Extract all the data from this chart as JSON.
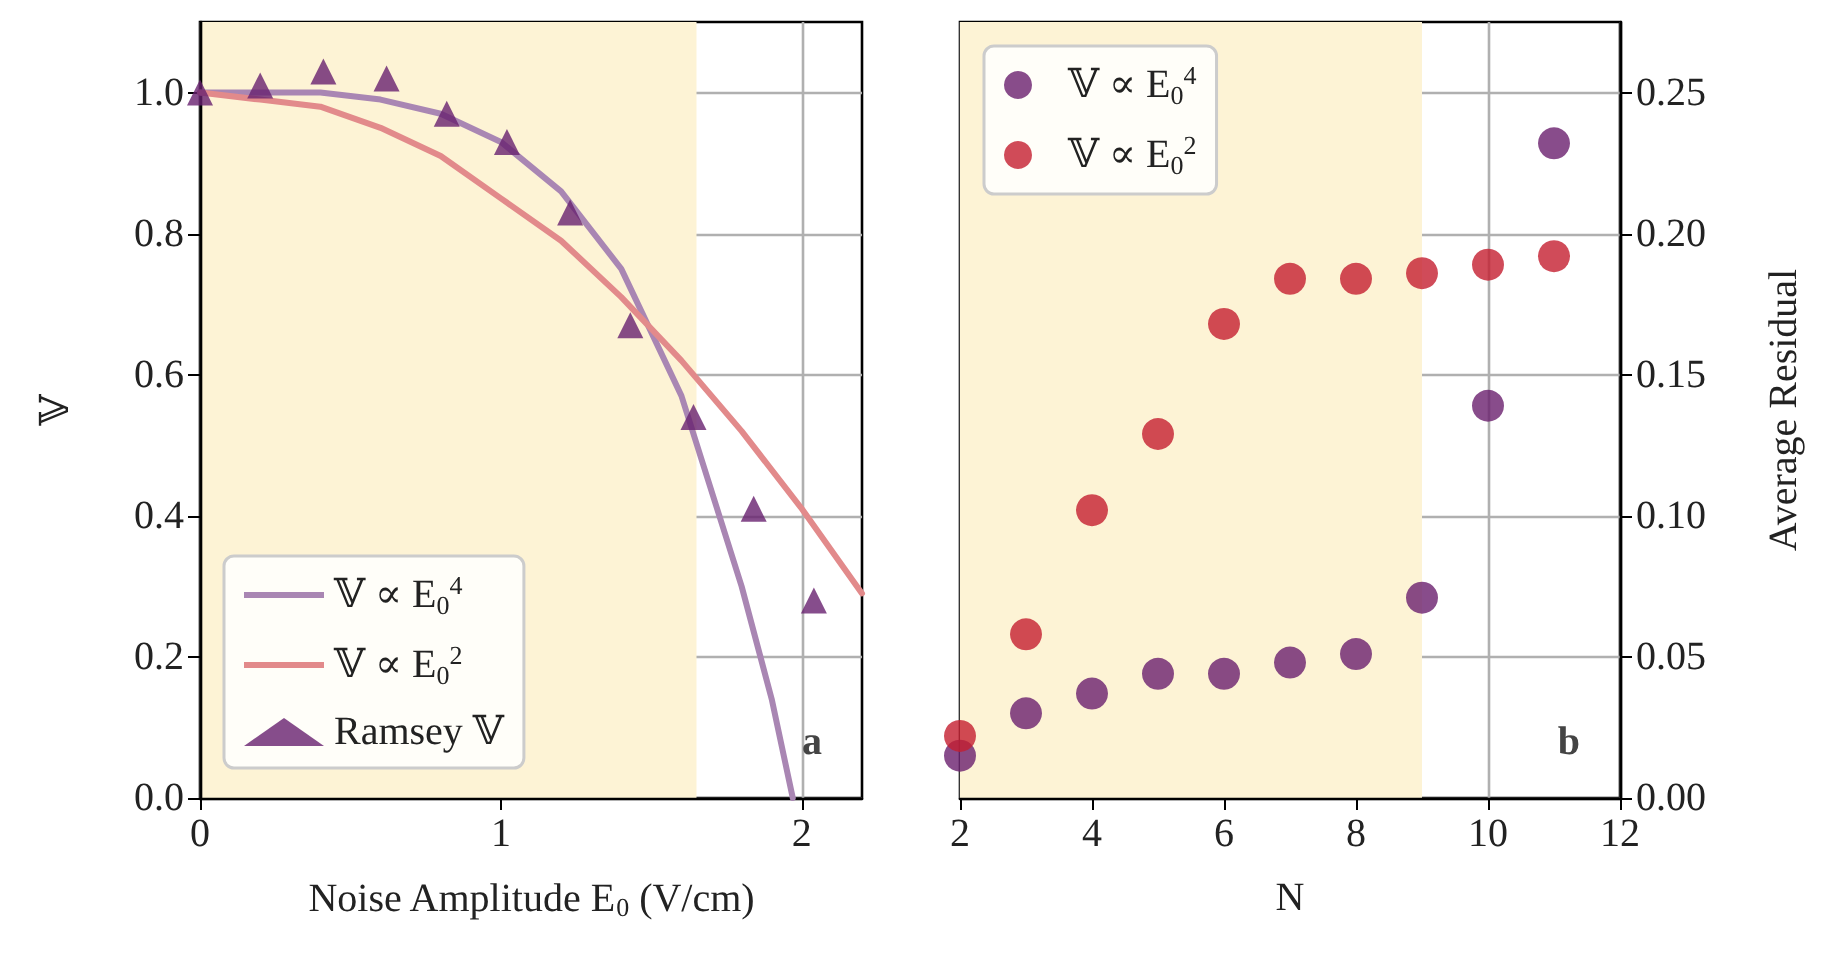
{
  "chart_data": [
    {
      "type": "line",
      "xlabel": "Noise Amplitude E$_{0}$ (V/cm)",
      "ylabel": "𝕍",
      "xlim": [
        0,
        2.2
      ],
      "xticks": [
        0,
        1,
        2
      ],
      "ylim": [
        0,
        1.1
      ],
      "yticks": [
        {
          "value": 0,
          "label": "0.0"
        },
        0.2,
        0.4,
        0.6,
        0.8,
        {
          "value": 1,
          "label": "1.0"
        }
      ],
      "grid": true,
      "legend": "bottom left",
      "annotations": [
        "a"
      ],
      "bands": [
        {
          "axis": "x",
          "from": 0,
          "to": 1.65,
          "color": "#fdf3d5"
        }
      ],
      "series": [
        {
          "name": "𝕍 ∝ E$_{0}$$^{4}$",
          "marker": "none",
          "color": "#a986b3",
          "x": [
            0,
            0.2,
            0.4,
            0.6,
            0.8,
            1.0,
            1.2,
            1.4,
            1.6,
            1.8,
            1.9,
            1.97
          ],
          "values": [
            1.0,
            1.0,
            1.0,
            0.99,
            0.97,
            0.93,
            0.86,
            0.75,
            0.57,
            0.3,
            0.14,
            0.0
          ]
        },
        {
          "name": "𝕍 ∝ E$_{0}$$^{2}$",
          "marker": "none",
          "color": "#e28a8b",
          "x": [
            0,
            0.2,
            0.4,
            0.6,
            0.8,
            1.0,
            1.2,
            1.4,
            1.6,
            1.8,
            2.0,
            2.2
          ],
          "values": [
            1.0,
            0.99,
            0.98,
            0.95,
            0.91,
            0.85,
            0.79,
            0.71,
            0.62,
            0.52,
            0.41,
            0.29
          ]
        },
        {
          "name": "Ramsey 𝕍",
          "type": "scatter",
          "marker": "triangle",
          "color": "#68206f",
          "x": [
            0,
            0.2,
            0.41,
            0.62,
            0.82,
            1.02,
            1.23,
            1.43,
            1.64,
            1.84,
            2.04
          ],
          "values": [
            1.0,
            1.01,
            1.03,
            1.02,
            0.97,
            0.93,
            0.83,
            0.67,
            0.54,
            0.41,
            0.28
          ]
        }
      ]
    },
    {
      "type": "scatter",
      "xlabel": "N",
      "y2label": "Average Residual",
      "xlim": [
        2,
        12
      ],
      "xticks": [
        2,
        4,
        6,
        8,
        10,
        12
      ],
      "y2lim": [
        0,
        0.275
      ],
      "y2ticks": [
        {
          "value": 0,
          "label": "0.00"
        },
        {
          "value": 0.05,
          "label": "0.05"
        },
        {
          "value": 0.1,
          "label": "0.10"
        },
        {
          "value": 0.15,
          "label": "0.15"
        },
        {
          "value": 0.2,
          "label": "0.20"
        },
        {
          "value": 0.25,
          "label": "0.25"
        }
      ],
      "grid": true,
      "legend": "top left",
      "marker": "circle",
      "annotations": [
        "b"
      ],
      "bands": [
        {
          "axis": "x",
          "from": 2,
          "to": 9,
          "color": "#fdf3d5"
        }
      ],
      "x": [
        2,
        3,
        4,
        5,
        6,
        7,
        8,
        9,
        10,
        11
      ],
      "series": [
        {
          "name": "𝕍 ∝ E$_{0}$$^{4}$",
          "axis": "y2",
          "color": "#6a1f6e",
          "values": [
            0.015,
            0.03,
            0.037,
            0.044,
            0.044,
            0.048,
            0.051,
            0.071,
            0.139,
            0.232
          ]
        },
        {
          "name": "𝕍 ∝ E$_{0}$$^{2}$",
          "axis": "y2",
          "color": "#c41e2f",
          "values": [
            0.022,
            0.058,
            0.102,
            0.129,
            0.168,
            0.184,
            0.184,
            0.186,
            0.189,
            0.192
          ]
        }
      ]
    }
  ]
}
